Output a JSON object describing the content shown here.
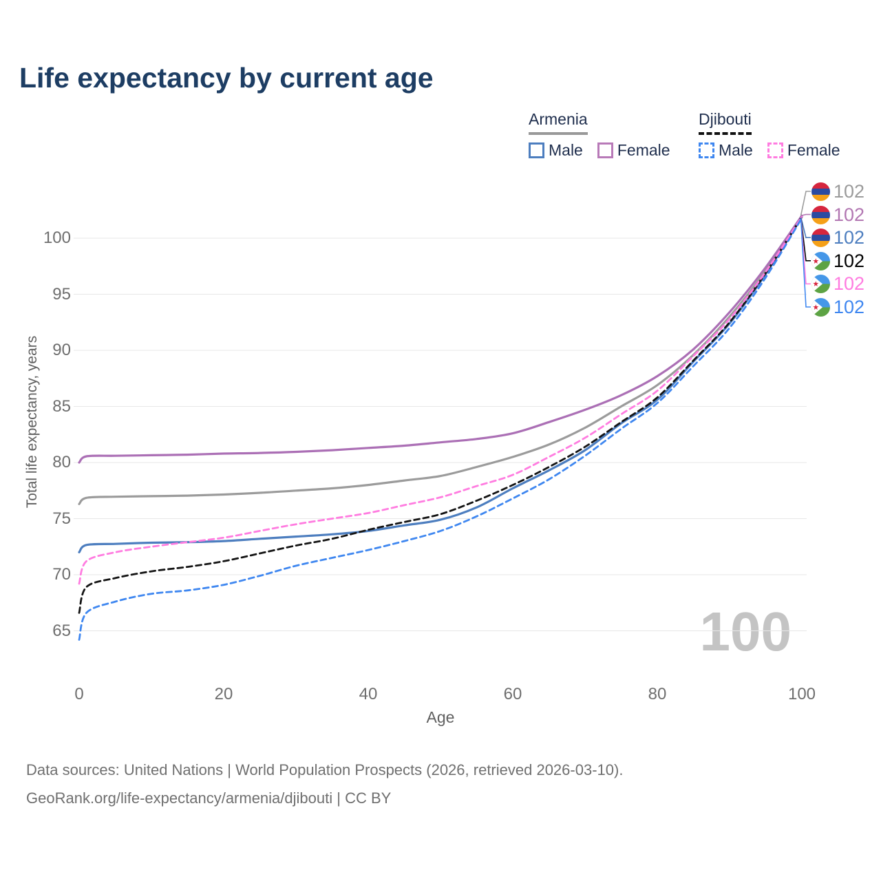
{
  "title": "Life expectancy by current age",
  "watermark": {
    "value": "100"
  },
  "legend": {
    "groups": [
      {
        "id": "armenia",
        "name": "Armenia",
        "underline_style": "solid",
        "underline_color": "#999999",
        "items": [
          {
            "id": "armenia-male",
            "label": "Male",
            "box_color": "#4d7ebf",
            "box_style": "solid"
          },
          {
            "id": "armenia-female",
            "label": "Female",
            "box_color": "#b87ab8",
            "box_style": "solid"
          }
        ]
      },
      {
        "id": "djibouti",
        "name": "Djibouti",
        "underline_style": "dashed",
        "underline_color": "#111111",
        "items": [
          {
            "id": "djibouti-male",
            "label": "Male",
            "box_color": "#3f87f0",
            "box_style": "dashed"
          },
          {
            "id": "djibouti-female",
            "label": "Female",
            "box_color": "#ff7ce0",
            "box_style": "dashed"
          }
        ]
      }
    ]
  },
  "chart_data": {
    "type": "line",
    "title": "Life expectancy by current age",
    "xlabel": "Age",
    "ylabel": "Total life expectancy, years",
    "x_ticks": [
      0,
      20,
      40,
      60,
      80,
      100
    ],
    "y_ticks": [
      65,
      70,
      75,
      80,
      85,
      90,
      95,
      100
    ],
    "xlim": [
      0,
      100
    ],
    "ylim": [
      63,
      103.5
    ],
    "grid": "horizontal-only",
    "legend_position": "top-right",
    "ages": [
      0,
      1,
      5,
      10,
      15,
      20,
      25,
      30,
      35,
      40,
      45,
      50,
      55,
      60,
      65,
      70,
      75,
      80,
      85,
      90,
      95,
      100
    ],
    "series": [
      {
        "id": "armenia-total",
        "name": "Armenia Total",
        "color": "#9b9b9b",
        "dash": "solid",
        "values": [
          76.3,
          76.85,
          76.95,
          77.0,
          77.05,
          77.15,
          77.3,
          77.5,
          77.7,
          78.0,
          78.4,
          78.8,
          79.6,
          80.5,
          81.6,
          83.1,
          85.0,
          86.9,
          89.6,
          93.0,
          97.1,
          102.0
        ]
      },
      {
        "id": "armenia-female",
        "name": "Armenia Female",
        "color": "#ab6fb5",
        "dash": "solid",
        "values": [
          80.0,
          80.55,
          80.6,
          80.65,
          80.7,
          80.8,
          80.85,
          80.95,
          81.1,
          81.3,
          81.5,
          81.8,
          82.1,
          82.6,
          83.6,
          84.7,
          86.0,
          87.7,
          90.1,
          93.4,
          97.4,
          102.0
        ]
      },
      {
        "id": "armenia-male",
        "name": "Armenia Male",
        "color": "#4d7ebf",
        "dash": "solid",
        "values": [
          72.0,
          72.65,
          72.75,
          72.85,
          72.9,
          73.0,
          73.2,
          73.4,
          73.6,
          73.9,
          74.4,
          74.9,
          76.0,
          77.7,
          79.3,
          81.1,
          83.5,
          85.6,
          89.0,
          92.4,
          96.8,
          101.9
        ]
      },
      {
        "id": "djibouti-total",
        "name": "Djibouti Total",
        "color": "#141414",
        "dash": "dashed",
        "values": [
          66.6,
          68.9,
          69.7,
          70.3,
          70.7,
          71.2,
          71.9,
          72.6,
          73.2,
          74.0,
          74.7,
          75.4,
          76.6,
          78.0,
          79.6,
          81.4,
          83.6,
          85.8,
          89.1,
          92.5,
          96.9,
          101.9
        ]
      },
      {
        "id": "djibouti-female",
        "name": "Djibouti Female",
        "color": "#ff7ce0",
        "dash": "dashed",
        "values": [
          69.2,
          71.2,
          72.0,
          72.5,
          72.9,
          73.3,
          73.9,
          74.5,
          75.0,
          75.5,
          76.2,
          76.9,
          77.9,
          78.9,
          80.5,
          82.2,
          84.3,
          86.4,
          89.5,
          92.8,
          97.0,
          101.9
        ]
      },
      {
        "id": "djibouti-male",
        "name": "Djibouti Male",
        "color": "#3f87f0",
        "dash": "dashed",
        "values": [
          64.2,
          66.6,
          67.6,
          68.3,
          68.6,
          69.1,
          69.9,
          70.8,
          71.5,
          72.2,
          73.0,
          73.9,
          75.2,
          76.8,
          78.5,
          80.6,
          83.0,
          85.3,
          88.6,
          92.0,
          96.5,
          101.8
        ]
      }
    ],
    "end_labels": [
      {
        "series": "armenia-total",
        "flag": "armenia",
        "value": "102",
        "color": "#9b9b9b"
      },
      {
        "series": "armenia-female",
        "flag": "armenia",
        "value": "102",
        "color": "#b277b2"
      },
      {
        "series": "armenia-male",
        "flag": "armenia",
        "value": "102",
        "color": "#4d7ebf"
      },
      {
        "series": "djibouti-total",
        "flag": "djibouti",
        "value": "102",
        "color": "#000000"
      },
      {
        "series": "djibouti-female",
        "flag": "djibouti",
        "value": "102",
        "color": "#ff7ce0"
      },
      {
        "series": "djibouti-male",
        "flag": "djibouti",
        "value": "102",
        "color": "#3f87f0"
      }
    ]
  },
  "footer": {
    "line1": "Data sources: United Nations | World Population Prospects (2026, retrieved 2026-03-10).",
    "line2": "GeoRank.org/life-expectancy/armenia/djibouti | CC BY"
  }
}
